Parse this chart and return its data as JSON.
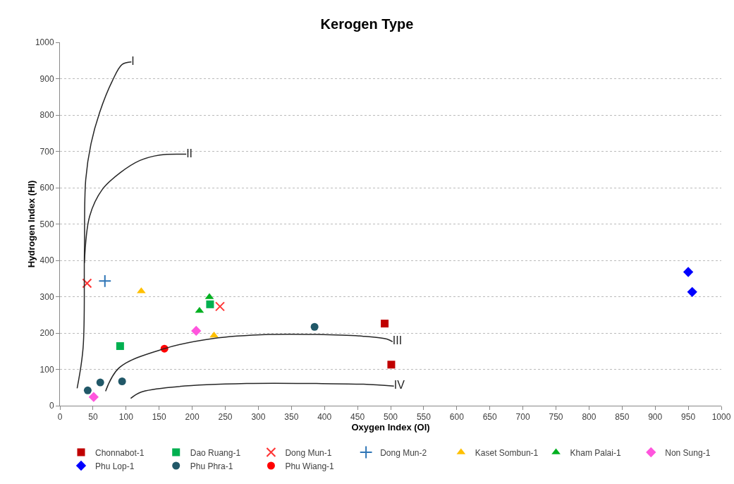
{
  "chart_data": {
    "type": "scatter",
    "title": "Kerogen Type",
    "xlabel": "Oxygen Index (OI)",
    "ylabel": "Hydrogen Index (HI)",
    "xlim": [
      0,
      1000
    ],
    "xticks": [
      0,
      50,
      100,
      150,
      200,
      250,
      300,
      350,
      400,
      450,
      500,
      550,
      600,
      650,
      700,
      750,
      800,
      850,
      900,
      950,
      1000
    ],
    "ylim": [
      0,
      1000
    ],
    "yticks": [
      0,
      100,
      200,
      300,
      400,
      500,
      600,
      700,
      800,
      900,
      1000
    ],
    "grid": "y",
    "legend": "bottom",
    "series": [
      {
        "name": "Chonnabot-1",
        "color": "#c00000",
        "marker": "square",
        "x": [
          491,
          501
        ],
        "values": [
          226,
          113
        ]
      },
      {
        "name": "Dao Ruang-1",
        "color": "#00b050",
        "marker": "square",
        "x": [
          91,
          227
        ],
        "values": [
          164,
          279
        ]
      },
      {
        "name": "Dong Mun-1",
        "color": "#ff3333",
        "marker": "cross",
        "x": [
          41,
          242
        ],
        "values": [
          337,
          273
        ]
      },
      {
        "name": "Dong Mun-2",
        "color": "#2e75b6",
        "marker": "plus",
        "x": [
          68
        ],
        "values": [
          343
        ]
      },
      {
        "name": "Kaset Sombun-1",
        "color": "#ffc000",
        "marker": "triangle",
        "x": [
          123,
          233
        ],
        "values": [
          315,
          193
        ]
      },
      {
        "name": "Kham Palai-1",
        "color": "#00b020",
        "marker": "triangle",
        "x": [
          226,
          211
        ],
        "values": [
          299,
          261
        ]
      },
      {
        "name": "Non Sung-1",
        "color": "#ff55dd",
        "marker": "diamond",
        "x": [
          206,
          51
        ],
        "values": [
          206,
          24
        ]
      },
      {
        "name": "Phu Lop-1",
        "color": "#0000ff",
        "marker": "diamond",
        "x": [
          950,
          956
        ],
        "values": [
          368,
          313
        ]
      },
      {
        "name": "Phu Phra-1",
        "color": "#215868",
        "marker": "circle",
        "x": [
          385,
          94,
          42,
          61
        ],
        "values": [
          217,
          67,
          42,
          64
        ]
      },
      {
        "name": "Phu Wiang-1",
        "color": "#ff0000",
        "marker": "circle",
        "x": [
          158
        ],
        "values": [
          157
        ]
      },
      {
        "type": "line",
        "name": "I",
        "color": "#262626",
        "marker": "none",
        "x": [
          26,
          35,
          37,
          39,
          47,
          60,
          79,
          94,
          108
        ],
        "values": [
          48,
          159,
          423,
          622,
          721,
          807,
          893,
          939,
          946
        ]
      },
      {
        "type": "line",
        "name": "II",
        "color": "#262626",
        "marker": "none",
        "x": [
          37,
          45,
          64,
          91,
          121,
          151,
          191
        ],
        "values": [
          393,
          522,
          595,
          641,
          675,
          690,
          692
        ]
      },
      {
        "type": "line",
        "name": "III",
        "color": "#262626",
        "marker": "none",
        "x": [
          69,
          90,
          158,
          232,
          317,
          388,
          459,
          495,
          503
        ],
        "values": [
          40,
          105,
          157,
          185,
          196,
          196,
          191,
          183,
          176
        ]
      },
      {
        "type": "line",
        "name": "IV",
        "color": "#262626",
        "marker": "none",
        "x": [
          107,
          122,
          176,
          282,
          388,
          459,
          505
        ],
        "values": [
          20,
          37,
          52,
          61,
          61,
          59,
          54
        ]
      }
    ]
  }
}
